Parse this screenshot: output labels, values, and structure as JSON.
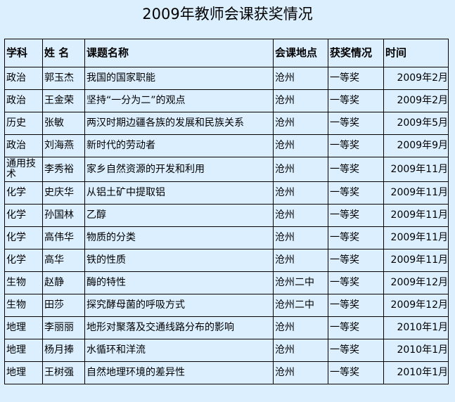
{
  "title": "2009年教师会课获奖情况",
  "table": {
    "headers": [
      "学科",
      "姓 名",
      "课题名称",
      "会课地点",
      "获奖情况",
      "时间"
    ],
    "rows": [
      [
        "政治",
        "郭玉杰",
        "我国的国家职能",
        "沧州",
        "一等奖",
        "2009年2月"
      ],
      [
        "政治",
        "王金荣",
        "坚持“一分为二”的观点",
        "沧州",
        "一等奖",
        "2009年2月"
      ],
      [
        "历史",
        "张敏",
        "两汉时期边疆各族的发展和民族关系",
        "沧州",
        "一等奖",
        "2009年5月"
      ],
      [
        "政治",
        "刘海燕",
        "新时代的劳动者",
        "沧州",
        "一等奖",
        "2009年9月"
      ],
      [
        "通用技术",
        "李秀裕",
        "家乡自然资源的开发和利用",
        "沧州",
        "一等奖",
        "2009年11月"
      ],
      [
        "化学",
        "史庆华",
        "从铝土矿中提取铝",
        "沧州",
        "一等奖",
        "2009年11月"
      ],
      [
        "化学",
        "孙国林",
        "乙醇",
        "沧州",
        "一等奖",
        "2009年11月"
      ],
      [
        "化学",
        "高伟华",
        "物质的分类",
        "沧州",
        "一等奖",
        "2009年11月"
      ],
      [
        "化学",
        "高华",
        "铁的性质",
        "沧州",
        "一等奖",
        "2009年11月"
      ],
      [
        "生物",
        "赵静",
        "酶的特性",
        "沧州二中",
        "一等奖",
        "2009年12月"
      ],
      [
        "生物",
        "田莎",
        "探究酵母菌的呼吸方式",
        "沧州二中",
        "一等奖",
        "2009年12月"
      ],
      [
        "地理",
        "李丽丽",
        "地形对聚落及交通线路分布的影响",
        "沧州",
        "一等奖",
        "2010年1月"
      ],
      [
        "地理",
        "杨月捧",
        "水循环和洋流",
        "沧州",
        "一等奖",
        "2010年1月"
      ],
      [
        "地理",
        "王树强",
        "自然地理环境的差异性",
        "沧州",
        "一等奖",
        "2010年1月"
      ]
    ]
  }
}
